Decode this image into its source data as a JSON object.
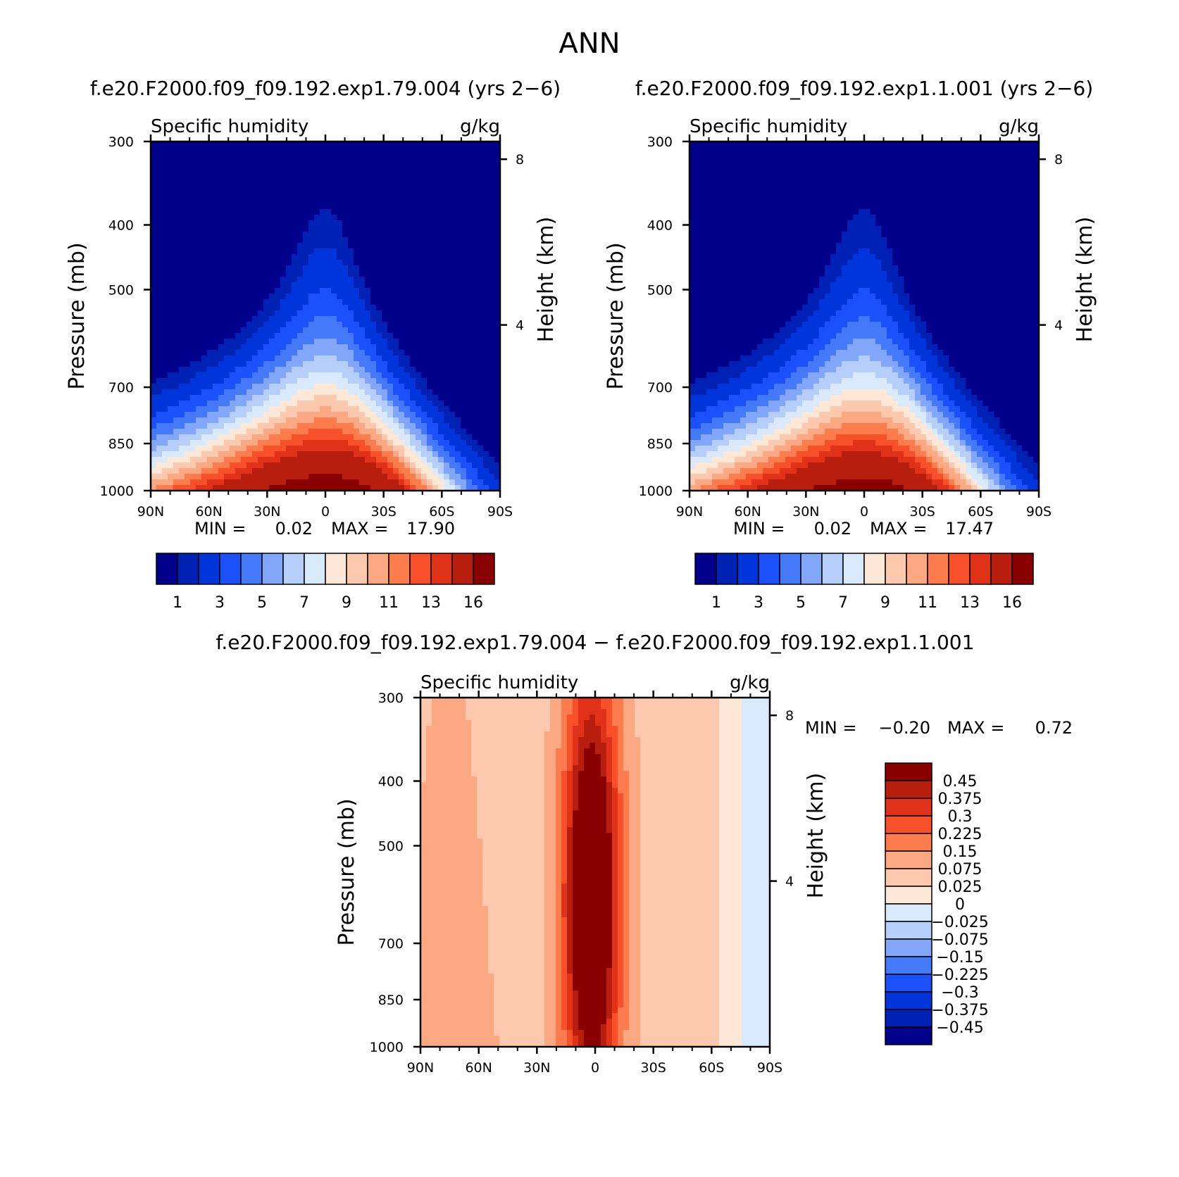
{
  "title": "ANN",
  "chart_data": [
    {
      "type": "heatmap",
      "case_title": "f.e20.F2000.f09_f09.192.exp1.79.004 (yrs 2−6)",
      "variable": "Specific humidity",
      "units": "g/kg",
      "ylabel": "Pressure (mb)",
      "ylabel_right": "Height (km)",
      "pressure_ticks": [
        "300",
        "400",
        "500",
        "700",
        "850",
        "1000"
      ],
      "pressure_values": [
        300,
        400,
        500,
        700,
        850,
        1000
      ],
      "height_ticks": [
        "8",
        "4"
      ],
      "height_values": [
        8,
        4
      ],
      "lat_ticks": [
        "90N",
        "60N",
        "30N",
        "0",
        "30S",
        "60S",
        "90S"
      ],
      "lat_values": [
        90,
        60,
        30,
        0,
        -30,
        -60,
        -90
      ],
      "min_label": "MIN =",
      "min_value": "0.02",
      "max_label": "MAX =",
      "max_value": "17.90",
      "peak": 17.9,
      "colorbar_labels": [
        "1",
        "3",
        "5",
        "7",
        "9",
        "11",
        "13",
        "16"
      ],
      "colors": [
        "#00008b",
        "#0022b4",
        "#0035dc",
        "#1c50fa",
        "#4479fa",
        "#82a6fa",
        "#b5cefa",
        "#d8eafc",
        "#fde8d8",
        "#fcc8ae",
        "#fca882",
        "#fc7c4e",
        "#f8502a",
        "#e03218",
        "#b81e0e",
        "#8a0000"
      ]
    },
    {
      "type": "heatmap",
      "case_title": "f.e20.F2000.f09_f09.192.exp1.1.001 (yrs 2−6)",
      "variable": "Specific humidity",
      "units": "g/kg",
      "ylabel": "Pressure (mb)",
      "ylabel_right": "Height (km)",
      "pressure_ticks": [
        "300",
        "400",
        "500",
        "700",
        "850",
        "1000"
      ],
      "pressure_values": [
        300,
        400,
        500,
        700,
        850,
        1000
      ],
      "height_ticks": [
        "8",
        "4"
      ],
      "height_values": [
        8,
        4
      ],
      "lat_ticks": [
        "90N",
        "60N",
        "30N",
        "0",
        "30S",
        "60S",
        "90S"
      ],
      "lat_values": [
        90,
        60,
        30,
        0,
        -30,
        -60,
        -90
      ],
      "min_label": "MIN =",
      "min_value": "0.02",
      "max_label": "MAX =",
      "max_value": "17.47",
      "peak": 17.47,
      "colorbar_labels": [
        "1",
        "3",
        "5",
        "7",
        "9",
        "11",
        "13",
        "16"
      ],
      "colors": [
        "#00008b",
        "#0022b4",
        "#0035dc",
        "#1c50fa",
        "#4479fa",
        "#82a6fa",
        "#b5cefa",
        "#d8eafc",
        "#fde8d8",
        "#fcc8ae",
        "#fca882",
        "#fc7c4e",
        "#f8502a",
        "#e03218",
        "#b81e0e",
        "#8a0000"
      ]
    },
    {
      "type": "heatmap",
      "case_title": "f.e20.F2000.f09_f09.192.exp1.79.004 − f.e20.F2000.f09_f09.192.exp1.1.001",
      "variable": "Specific humidity",
      "units": "g/kg",
      "ylabel": "Pressure (mb)",
      "ylabel_right": "Height (km)",
      "pressure_ticks": [
        "300",
        "400",
        "500",
        "700",
        "850",
        "1000"
      ],
      "pressure_values": [
        300,
        400,
        500,
        700,
        850,
        1000
      ],
      "height_ticks": [
        "8",
        "4"
      ],
      "height_values": [
        8,
        4
      ],
      "lat_ticks": [
        "90N",
        "60N",
        "30N",
        "0",
        "30S",
        "60S",
        "90S"
      ],
      "lat_values": [
        90,
        60,
        30,
        0,
        -30,
        -60,
        -90
      ],
      "min_label": "MIN =",
      "min_value": "−0.20",
      "max_label": "MAX =",
      "max_value": "0.72",
      "colorbar_labels": [
        "0.45",
        "0.375",
        "0.3",
        "0.225",
        "0.15",
        "0.075",
        "0.025",
        "0",
        "−0.025",
        "−0.075",
        "−0.15",
        "−0.225",
        "−0.3",
        "−0.375",
        "−0.45"
      ],
      "colors": [
        "#8a0000",
        "#b81e0e",
        "#e03218",
        "#f8502a",
        "#fc7c4e",
        "#fca882",
        "#fcc8ae",
        "#fde8d8",
        "#d8eafc",
        "#b5cefa",
        "#82a6fa",
        "#4479fa",
        "#1c50fa",
        "#0035dc",
        "#0022b4",
        "#00008b"
      ]
    }
  ]
}
